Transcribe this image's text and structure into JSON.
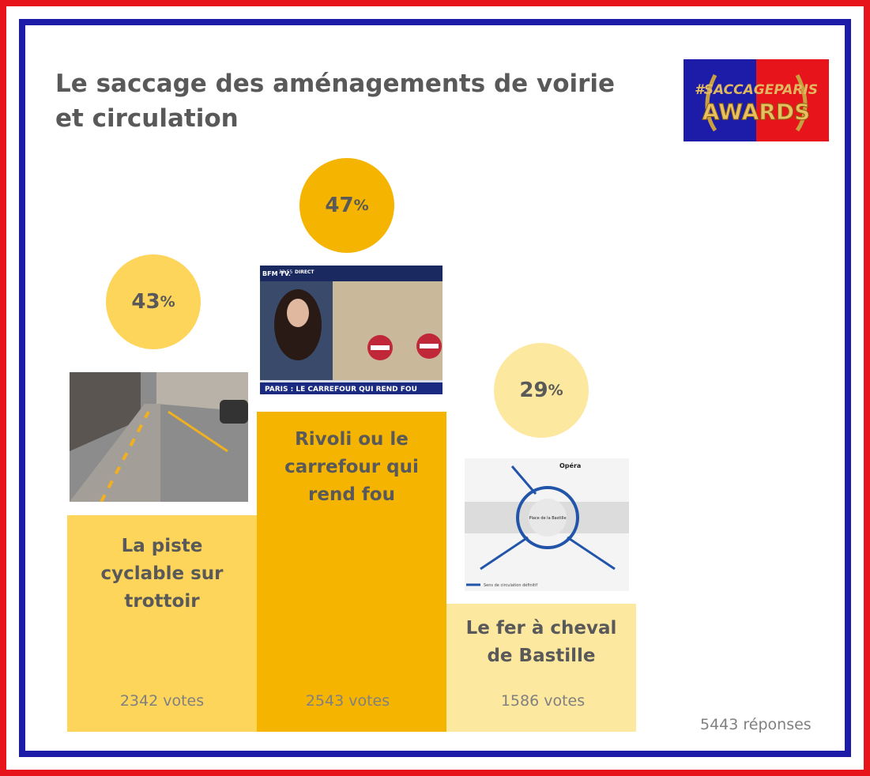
{
  "header": {
    "title": "Le saccage des aménagements de voirie et circulation",
    "logo": {
      "line1": "#SACCAGEPARIS",
      "line2": "AWARDS"
    }
  },
  "options": [
    {
      "percent": "43",
      "percent_sign": "%",
      "label": "La piste cyclable sur trottoir",
      "votes": "2342 votes"
    },
    {
      "percent": "47",
      "percent_sign": "%",
      "label": "Rivoli ou le carrefour qui rend fou",
      "votes": "2543 votes",
      "image": {
        "channel": "BFM TV.",
        "time": "22:55",
        "live": "DIRECT",
        "banner": "PARIS : LE CARREFOUR QUI REND FOU"
      }
    },
    {
      "percent": "29",
      "percent_sign": "%",
      "label": "Le fer à cheval de Bastille",
      "votes": "1586 votes",
      "image": {
        "place": "Opéra",
        "square": "Place de la Bastille",
        "legend": "Sens de circulation définitif"
      }
    }
  ],
  "footer": {
    "total": "5443 réponses"
  }
}
